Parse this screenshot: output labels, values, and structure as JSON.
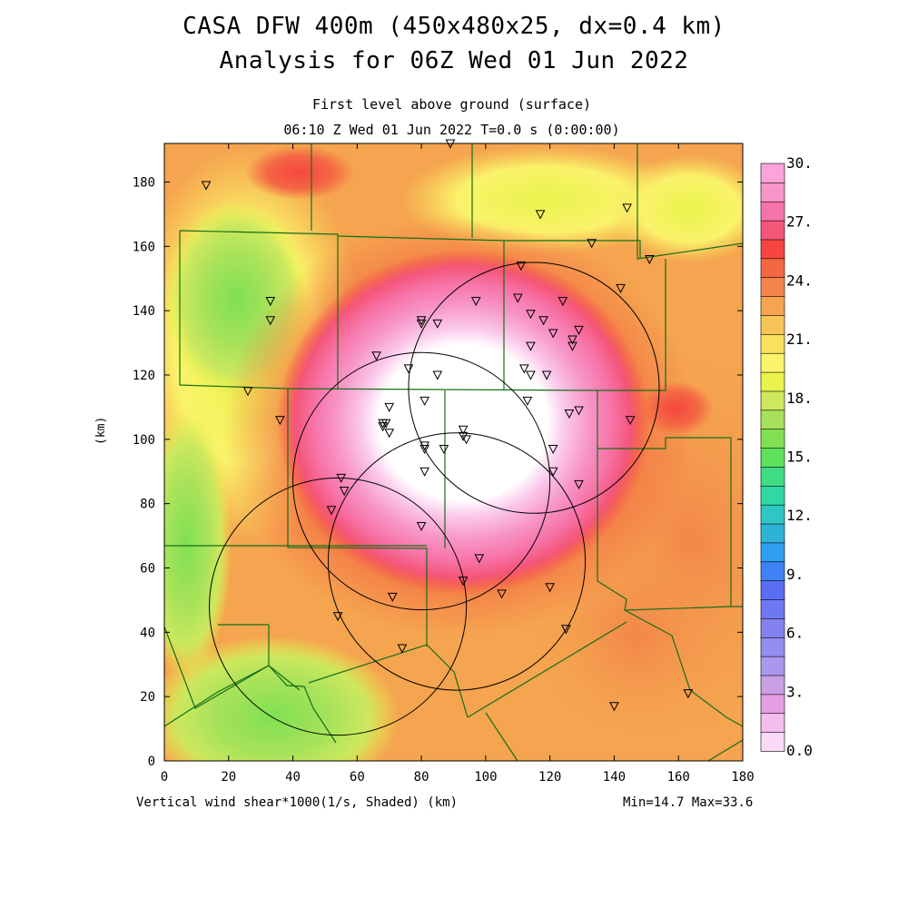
{
  "header": {
    "title_line1": "CASA DFW 400m (450x480x25, dx=0.4 km)",
    "title_line2": "Analysis for 06Z Wed 01 Jun 2022",
    "subtitle_line1": "First level above ground (surface)",
    "subtitle_line2": "06:10 Z Wed 01 Jun 2022   T=0.0 s (0:00:00)"
  },
  "axes": {
    "x_ticks": [
      "0",
      "20",
      "40",
      "60",
      "80",
      "100",
      "120",
      "140",
      "160",
      "180"
    ],
    "y_ticks": [
      "0",
      "20",
      "40",
      "60",
      "80",
      "100",
      "120",
      "140",
      "160",
      "180"
    ],
    "x_range_km": [
      0,
      180
    ],
    "y_range_km": [
      0,
      192
    ],
    "y_label": "(km)"
  },
  "footer": {
    "caption": "Vertical wind shear*1000(1/s, Shaded)  (km)",
    "minmax": "Min=14.7 Max=33.6"
  },
  "colorbar": {
    "labels": [
      "0.0",
      "3.",
      "6.",
      "9.",
      "12.",
      "15.",
      "18.",
      "21.",
      "24.",
      "27.",
      "30."
    ],
    "colors": [
      "#fcd9f7",
      "#f3bdee",
      "#e5a0e4",
      "#c99fe5",
      "#ab98ec",
      "#968df0",
      "#8482ee",
      "#6f78f2",
      "#5a6ef4",
      "#3f82f6",
      "#2f9ef0",
      "#2eb2d6",
      "#2ec7c4",
      "#31d8a4",
      "#3fdc86",
      "#5ee15b",
      "#80e052",
      "#a7e25a",
      "#cce85e",
      "#e9f34b",
      "#faf36b",
      "#f9e05d",
      "#f6c457",
      "#f5a44f",
      "#f3854a",
      "#f46743",
      "#f6463f",
      "#f4567a",
      "#f774a8",
      "#f796c8",
      "#fca3d9"
    ]
  },
  "map": {
    "radar_circles": [
      {
        "x_km": 115,
        "y_km": 116,
        "r_km": 39
      },
      {
        "x_km": 80,
        "y_km": 87,
        "r_km": 40
      },
      {
        "x_km": 54,
        "y_km": 48,
        "r_km": 40
      },
      {
        "x_km": 91,
        "y_km": 62,
        "r_km": 40
      }
    ],
    "stations_km": [
      [
        89,
        192
      ],
      [
        13,
        179
      ],
      [
        117,
        170
      ],
      [
        144,
        172
      ],
      [
        133,
        161
      ],
      [
        151,
        156
      ],
      [
        111,
        154
      ],
      [
        33,
        143
      ],
      [
        33,
        137
      ],
      [
        142,
        147
      ],
      [
        97,
        143
      ],
      [
        110,
        144
      ],
      [
        124,
        143
      ],
      [
        80,
        137
      ],
      [
        80,
        136
      ],
      [
        85,
        136
      ],
      [
        114,
        139
      ],
      [
        118,
        137
      ],
      [
        129,
        134
      ],
      [
        121,
        133
      ],
      [
        127,
        131
      ],
      [
        127,
        129
      ],
      [
        114,
        129
      ],
      [
        66,
        126
      ],
      [
        76,
        122
      ],
      [
        85,
        120
      ],
      [
        112,
        122
      ],
      [
        114,
        120
      ],
      [
        119,
        120
      ],
      [
        81,
        112
      ],
      [
        113,
        112
      ],
      [
        26,
        115
      ],
      [
        36,
        106
      ],
      [
        70,
        110
      ],
      [
        68,
        105
      ],
      [
        69,
        105
      ],
      [
        68,
        104
      ],
      [
        70,
        102
      ],
      [
        126,
        108
      ],
      [
        129,
        109
      ],
      [
        145,
        106
      ],
      [
        93,
        103
      ],
      [
        93,
        101
      ],
      [
        94,
        100
      ],
      [
        81,
        98
      ],
      [
        81,
        97
      ],
      [
        87,
        97
      ],
      [
        121,
        97
      ],
      [
        81,
        90
      ],
      [
        121,
        90
      ],
      [
        129,
        86
      ],
      [
        55,
        88
      ],
      [
        56,
        84
      ],
      [
        52,
        78
      ],
      [
        80,
        73
      ],
      [
        98,
        63
      ],
      [
        93,
        56
      ],
      [
        71,
        51
      ],
      [
        105,
        52
      ],
      [
        120,
        54
      ],
      [
        54,
        45
      ],
      [
        125,
        41
      ],
      [
        74,
        35
      ],
      [
        140,
        17
      ],
      [
        163,
        21
      ]
    ]
  }
}
